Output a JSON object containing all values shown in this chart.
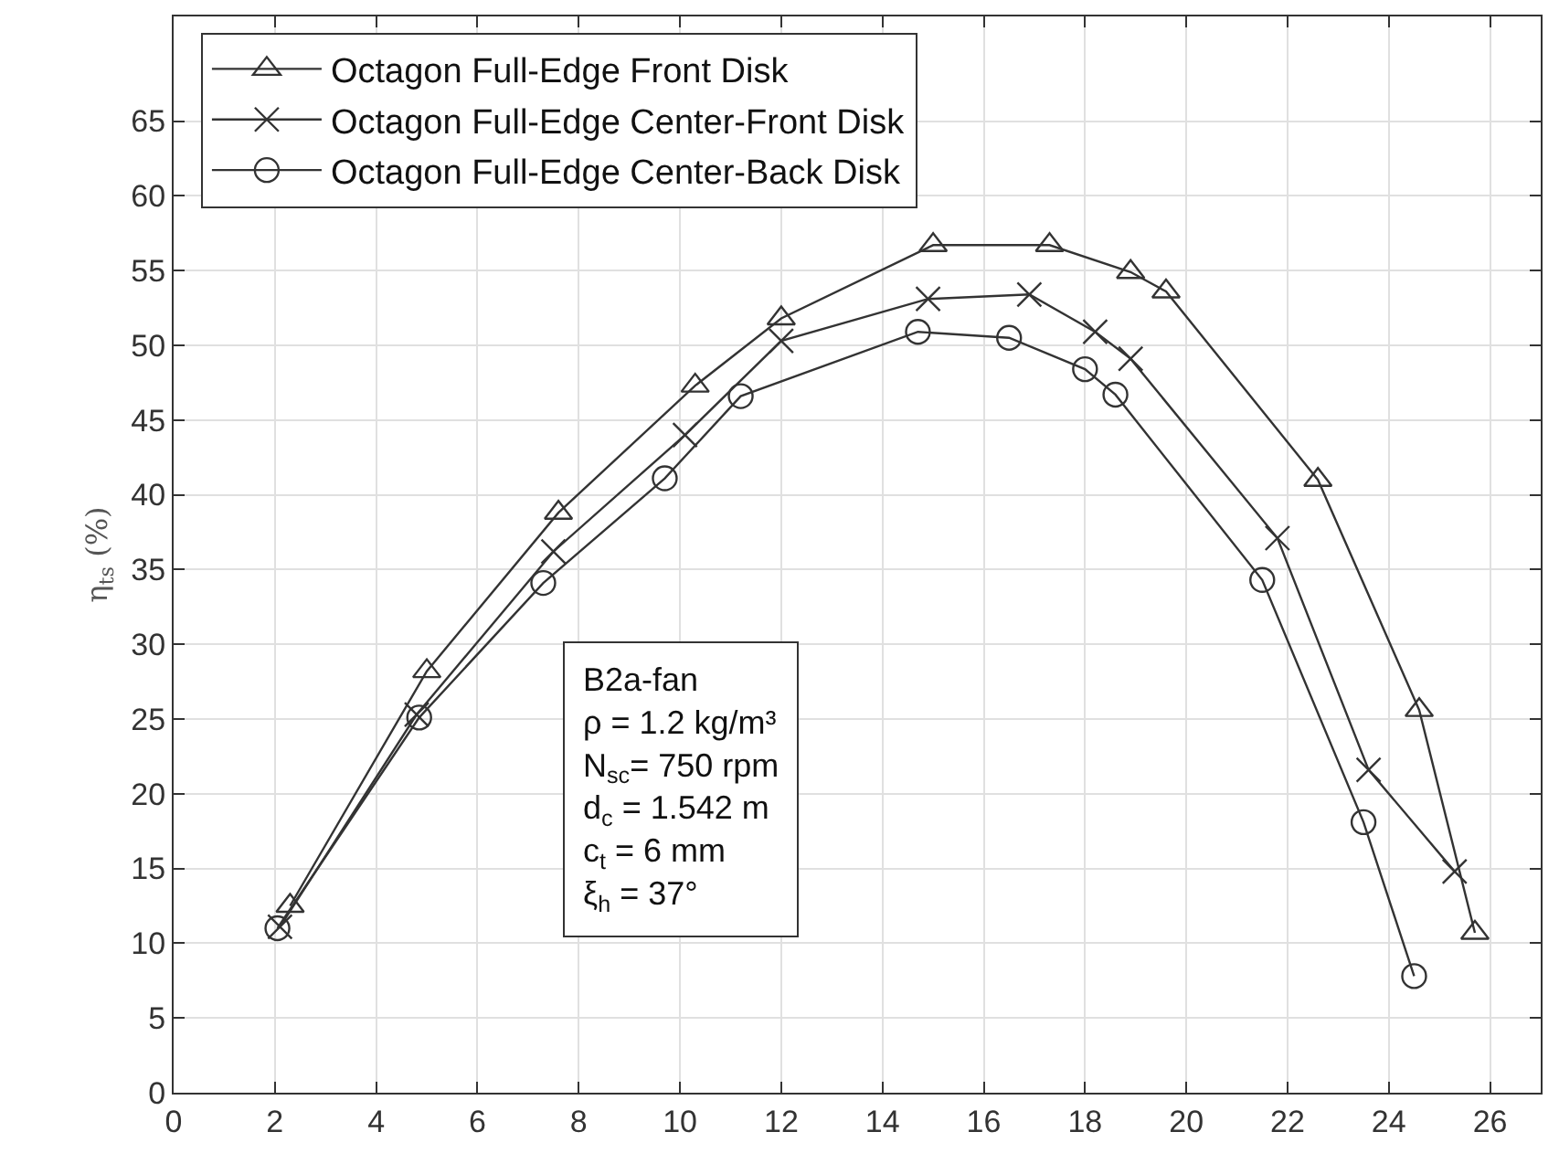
{
  "chart_data": {
    "type": "line",
    "ylabel": "η$_{ts}$ (%)",
    "xlim": [
      0,
      27
    ],
    "ylim": [
      0,
      72
    ],
    "xticks": [
      0,
      2,
      4,
      6,
      8,
      10,
      12,
      14,
      16,
      18,
      20,
      22,
      24,
      26
    ],
    "yticks": [
      0,
      5,
      10,
      15,
      20,
      25,
      30,
      35,
      40,
      45,
      50,
      55,
      60,
      65
    ],
    "grid": true,
    "legend": "top left",
    "line_style": "solid",
    "series": [
      {
        "name": "Octagon Full-Edge Front Disk",
        "color": "#333333",
        "marker": "triangle",
        "x": [
          2.3,
          5.0,
          7.6,
          10.3,
          12.0,
          15.0,
          17.3,
          18.9,
          19.6,
          22.6,
          24.6,
          25.7
        ],
        "values": [
          12.5,
          28.2,
          38.8,
          47.3,
          51.8,
          56.7,
          56.7,
          54.9,
          53.6,
          41.0,
          25.6,
          10.7
        ]
      },
      {
        "name": "Octagon Full-Edge Center-Front Disk",
        "color": "#333333",
        "marker": "cross",
        "x": [
          2.1,
          4.8,
          7.5,
          10.1,
          12.0,
          14.9,
          16.9,
          18.2,
          18.9,
          21.8,
          23.6,
          25.3
        ],
        "values": [
          11.1,
          25.3,
          36.2,
          44.0,
          50.3,
          53.1,
          53.4,
          50.9,
          49.1,
          37.1,
          21.6,
          14.8
        ]
      },
      {
        "name": "Octagon Full-Edge Center-Back Disk",
        "color": "#333333",
        "marker": "circle",
        "x": [
          2.05,
          4.85,
          7.3,
          9.7,
          11.2,
          14.7,
          16.5,
          18.0,
          18.6,
          21.5,
          23.5,
          24.5
        ],
        "values": [
          11.0,
          25.1,
          34.1,
          41.1,
          46.6,
          50.9,
          50.5,
          48.4,
          46.7,
          34.3,
          18.1,
          7.8
        ]
      }
    ],
    "annotations": [
      "B2a-fan\nρ = 1.2 kg/m³\nN$_{sc}$= 750 rpm\nd$_{c}$ = 1.542 m\nc$_{t}$ = 6 mm\nξ$_{h}$ = 37°"
    ]
  }
}
